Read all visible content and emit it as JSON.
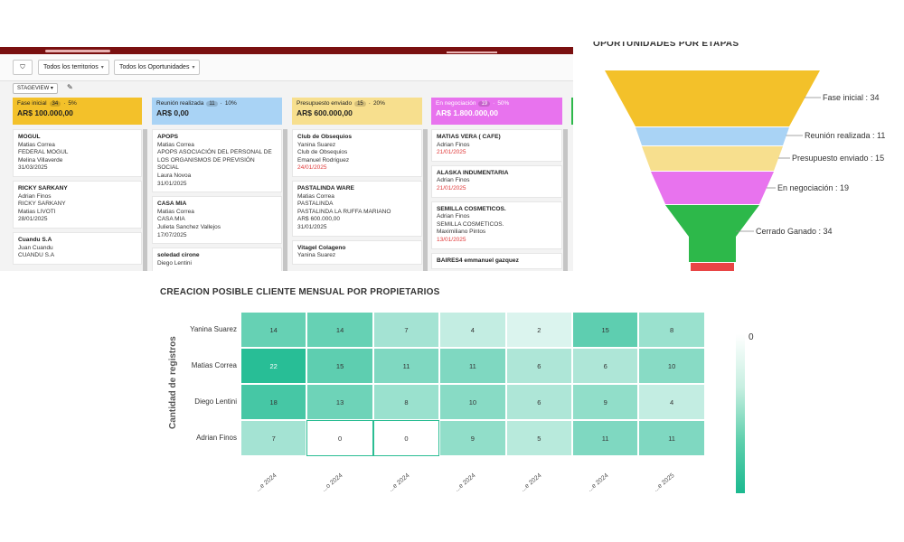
{
  "toolbar": {
    "territories": "Todos los territorios",
    "opportunities": "Todos los Oportunidades",
    "stageview": "STAGEVIEW"
  },
  "stages": [
    {
      "name": "Fase inicial",
      "count": "34",
      "pct": "5%",
      "amount": "AR$ 100.000,00",
      "color": "#f3c12a",
      "cards": [
        {
          "title": "MOGUL",
          "lines": [
            "Matias Correa",
            "FEDERAL MOGUL",
            "Melina Villaverde",
            "31/03/2025"
          ],
          "red": false
        },
        {
          "title": "RICKY SARKANY",
          "lines": [
            "Adrian Finos",
            "RICKY SARKANY",
            "Matias LIVOTI",
            "28/01/2025"
          ],
          "red": false
        },
        {
          "title": "Cuandu S.A",
          "lines": [
            "Juan Cuandu",
            "CUANDU S.A"
          ],
          "red": false
        }
      ]
    },
    {
      "name": "Reunión realizada",
      "count": "11",
      "pct": "10%",
      "amount": "AR$ 0,00",
      "color": "#a9d3f5",
      "cards": [
        {
          "title": "APOPS",
          "lines": [
            "Matias Correa",
            "APOPS ASOCIACIÓN DEL PERSONAL DE LOS ORGANISMOS DE PREVISIÓN SOCIAL",
            "Laura Novoa",
            "31/01/2025"
          ],
          "red": false
        },
        {
          "title": "CASA MIA",
          "lines": [
            "Matias Correa",
            "CASA MIA",
            "Julieta Sanchez Vallejos",
            "17/07/2025"
          ],
          "red": false
        },
        {
          "title": "soledad cirone",
          "lines": [
            "Diego Lentini"
          ],
          "red": false
        }
      ]
    },
    {
      "name": "Presupuesto enviado",
      "count": "15",
      "pct": "20%",
      "amount": "AR$ 600.000,00",
      "color": "#f7df8e",
      "cards": [
        {
          "title": "Club de Obsequios",
          "lines": [
            "Yanina Suarez",
            "Club de Obsequios",
            "Emanuel Rodriguez",
            "24/01/2025"
          ],
          "red": true
        },
        {
          "title": "PASTALINDA WARE",
          "lines": [
            "Matias Correa",
            "PASTALINDA",
            "PASTALINDA LA RUFFA MARIANO",
            "AR$ 600.000,00",
            "31/01/2025"
          ],
          "red": false
        },
        {
          "title": "Vitagel Colageno",
          "lines": [
            "Yanina Suarez"
          ],
          "red": false
        }
      ]
    },
    {
      "name": "En negociación",
      "count": "19",
      "pct": "50%",
      "amount": "AR$ 1.800.000,00",
      "color": "#e873ee",
      "cards": [
        {
          "title": "MATIAS VERA ( CAFE)",
          "lines": [
            "Adrian Finos",
            "21/01/2025"
          ],
          "red": true
        },
        {
          "title": "ALASKA INDUMENTARIA",
          "lines": [
            "Adrian Finos",
            "21/01/2025"
          ],
          "red": true
        },
        {
          "title": "SEMILLA COSMETICOS.",
          "lines": [
            "Adrian Finos",
            "SEMILLA COSMETICOS.",
            "Maximiliano Pintos",
            "13/01/2025"
          ],
          "red": true
        },
        {
          "title": "BAIRES4 emmanuel gazquez",
          "lines": [],
          "red": false
        }
      ]
    }
  ],
  "funnel": {
    "title": "OPORTUNIDADES POR ETAPAS",
    "stages": [
      {
        "label": "Fase inicial : 34",
        "value": 34,
        "color": "#f3c12a"
      },
      {
        "label": "Reunión realizada : 11",
        "value": 11,
        "color": "#a9d3f5"
      },
      {
        "label": "Presupuesto enviado : 15",
        "value": 15,
        "color": "#f7df8e"
      },
      {
        "label": "En negociación : 19",
        "value": 19,
        "color": "#e873ee"
      },
      {
        "label": "Cerrado Ganado : 34",
        "value": 34,
        "color": "#2db84a"
      },
      {
        "label": "",
        "value": 0,
        "color": "#e84545"
      }
    ]
  },
  "heatmap": {
    "title": "CREACION POSIBLE CLIENTE MENSUAL POR PROPIETARIOS",
    "ylabel": "Cantidad de registros",
    "rows": [
      "Yanina Suarez",
      "Matias Correa",
      "Diego Lentini",
      "Adrian Finos"
    ],
    "cols": [
      "...e 2024",
      "...o 2024",
      "...e 2024",
      "...e 2024",
      "...e 2024",
      "...e 2024",
      "...e 2025"
    ],
    "values": [
      [
        14,
        14,
        7,
        4,
        2,
        15,
        8
      ],
      [
        22,
        15,
        11,
        11,
        6,
        6,
        10
      ],
      [
        18,
        13,
        8,
        10,
        6,
        9,
        4
      ],
      [
        7,
        0,
        0,
        9,
        5,
        11,
        11
      ]
    ],
    "colorbar_label": "0"
  }
}
